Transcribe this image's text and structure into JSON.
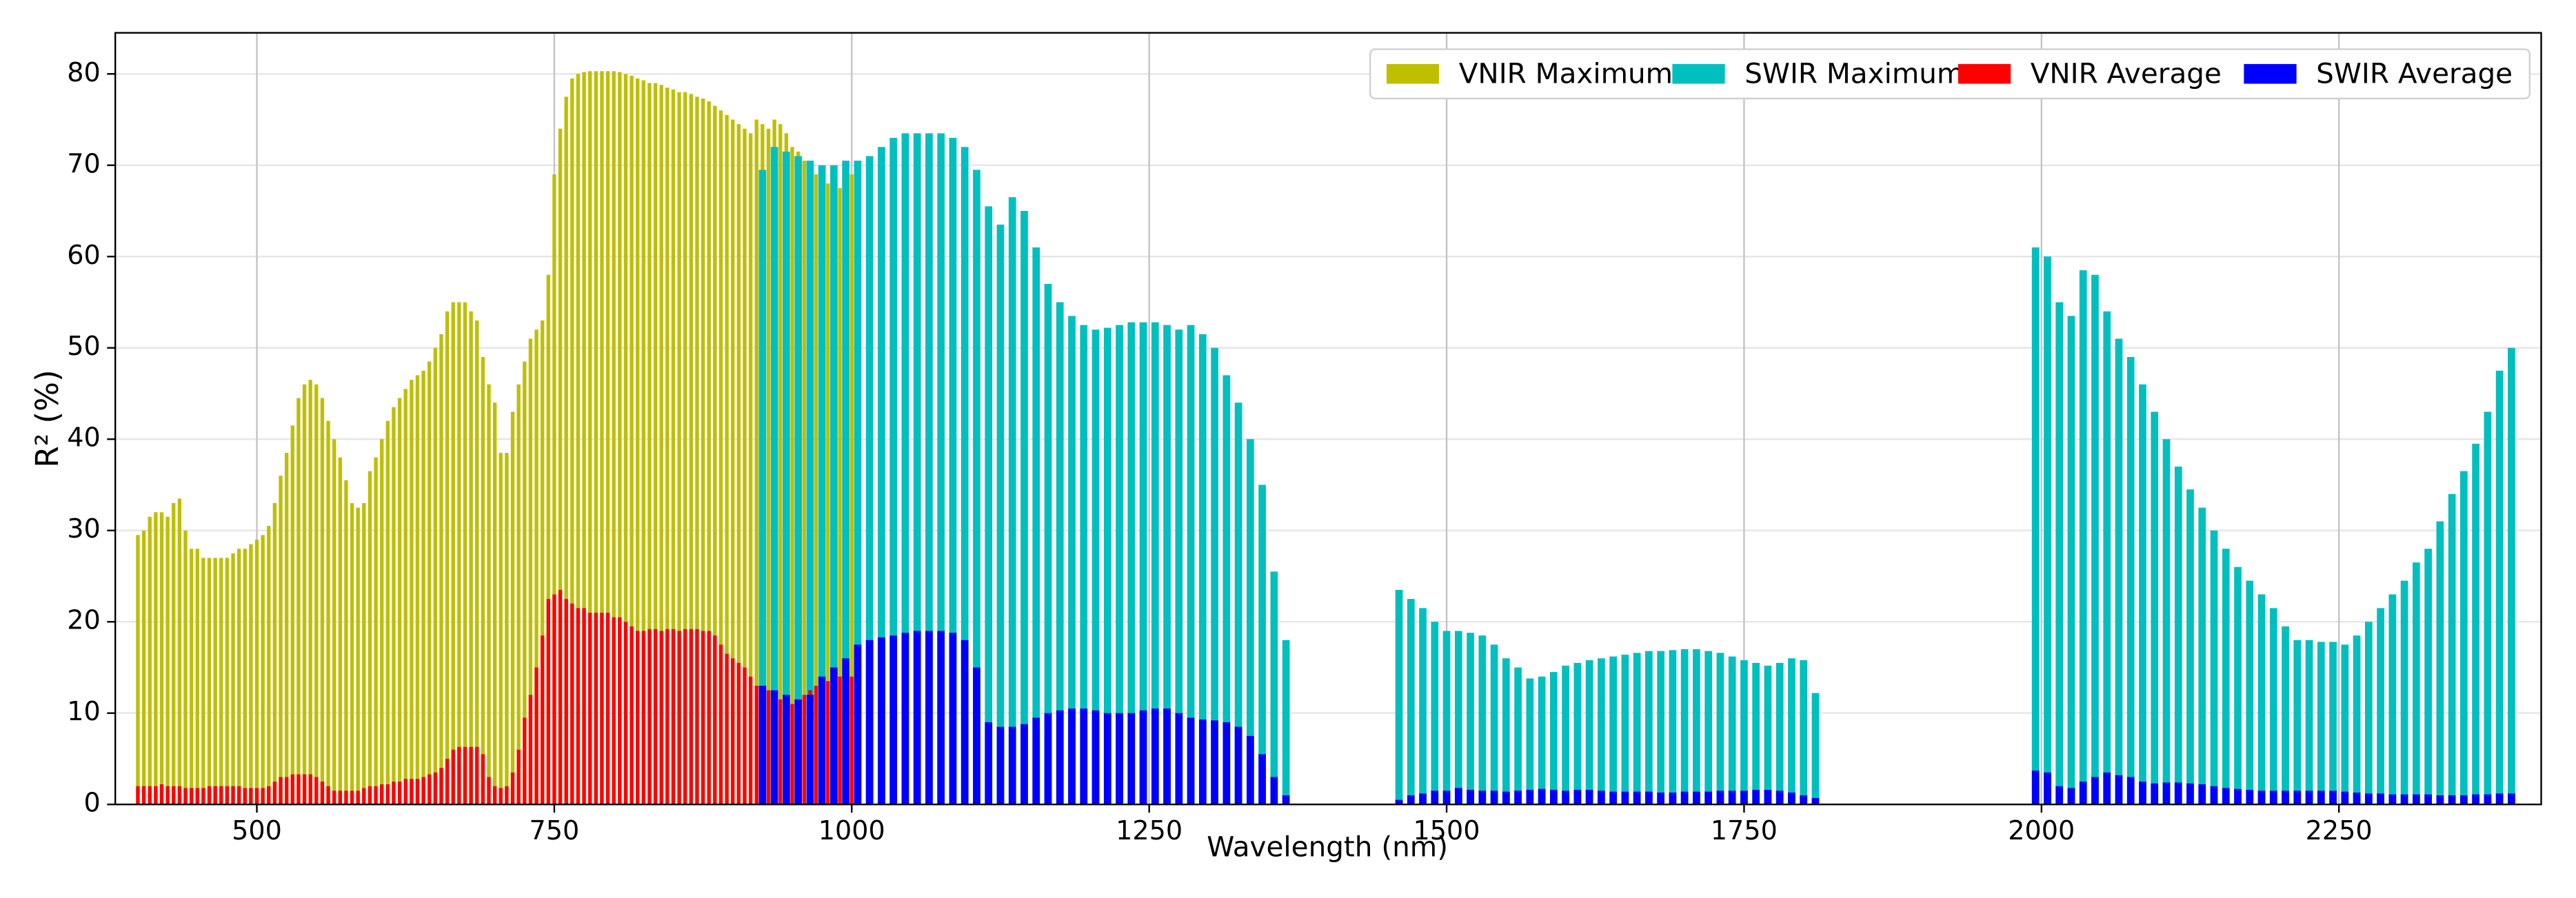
{
  "chart_data": {
    "type": "bar",
    "xlabel": "Wavelength (nm)",
    "ylabel": "R² (%)",
    "xlim": [
      381,
      2420
    ],
    "ylim": [
      0,
      84.5
    ],
    "xticks": [
      500,
      750,
      1000,
      1250,
      1500,
      1750,
      2000,
      2250
    ],
    "yticks": [
      0,
      10,
      20,
      30,
      40,
      50,
      60,
      70,
      80
    ],
    "grid": true,
    "legend": "upper right",
    "series": [
      {
        "name": "VNIR Maximum",
        "color": "#bfbf00",
        "x": [
          400,
          405,
          410,
          415,
          420,
          425,
          430,
          435,
          440,
          445,
          450,
          455,
          460,
          465,
          470,
          475,
          480,
          485,
          490,
          495,
          500,
          505,
          510,
          515,
          520,
          525,
          530,
          535,
          540,
          545,
          550,
          555,
          560,
          565,
          570,
          575,
          580,
          585,
          590,
          595,
          600,
          605,
          610,
          615,
          620,
          625,
          630,
          635,
          640,
          645,
          650,
          655,
          660,
          665,
          670,
          675,
          680,
          685,
          690,
          695,
          700,
          705,
          710,
          715,
          720,
          725,
          730,
          735,
          740,
          745,
          750,
          755,
          760,
          765,
          770,
          775,
          780,
          785,
          790,
          795,
          800,
          805,
          810,
          815,
          820,
          825,
          830,
          835,
          840,
          845,
          850,
          855,
          860,
          865,
          870,
          875,
          880,
          885,
          890,
          895,
          900,
          905,
          910,
          915,
          920,
          925,
          930,
          935,
          940,
          945,
          950,
          955,
          960,
          965,
          970,
          975,
          980,
          985,
          990,
          995,
          1000
        ],
        "values": [
          29.5,
          30,
          31.5,
          32,
          32,
          31.5,
          33,
          33.5,
          30,
          28,
          28,
          27,
          27,
          27,
          27,
          27,
          27.5,
          28,
          28,
          28.5,
          29,
          29.5,
          30.5,
          33,
          36,
          38.5,
          41.5,
          44.5,
          46,
          46.5,
          46,
          44.5,
          42,
          40,
          38,
          35.5,
          33,
          32.5,
          33,
          36.5,
          38,
          40,
          42,
          43.5,
          44.5,
          45.5,
          46.5,
          47,
          47.5,
          48.5,
          50,
          51.5,
          54,
          55,
          55,
          55,
          54,
          53,
          49,
          46,
          44,
          38.5,
          38.5,
          43,
          46,
          48.5,
          51,
          52,
          53,
          58,
          69,
          74,
          77.5,
          79.5,
          80,
          80.2,
          80.3,
          80.3,
          80.3,
          80.3,
          80.3,
          80.2,
          80,
          79.8,
          79.5,
          79.3,
          79,
          79,
          78.8,
          78.5,
          78.3,
          78,
          78,
          77.8,
          77.5,
          77.3,
          77,
          76.5,
          76,
          75.5,
          75,
          74.5,
          74,
          73.5,
          75,
          74.5,
          74,
          75,
          74.5,
          73.5,
          72,
          71.5,
          70.5,
          70,
          69,
          68.5,
          68,
          68,
          67.5,
          67,
          69
        ]
      },
      {
        "name": "SWIR Maximum",
        "color": "#00bfbf",
        "x": [
          925,
          935,
          945,
          955,
          965,
          975,
          985,
          995,
          1005,
          1015,
          1025,
          1035,
          1045,
          1055,
          1065,
          1075,
          1085,
          1095,
          1105,
          1115,
          1125,
          1135,
          1145,
          1155,
          1165,
          1175,
          1185,
          1195,
          1205,
          1215,
          1225,
          1235,
          1245,
          1255,
          1265,
          1275,
          1285,
          1295,
          1305,
          1315,
          1325,
          1335,
          1345,
          1355,
          1365,
          1460,
          1470,
          1480,
          1490,
          1500,
          1510,
          1520,
          1530,
          1540,
          1550,
          1560,
          1570,
          1580,
          1590,
          1600,
          1610,
          1620,
          1630,
          1640,
          1650,
          1660,
          1670,
          1680,
          1690,
          1700,
          1710,
          1720,
          1730,
          1740,
          1750,
          1760,
          1770,
          1780,
          1790,
          1800,
          1810,
          1995,
          2005,
          2015,
          2025,
          2035,
          2045,
          2055,
          2065,
          2075,
          2085,
          2095,
          2105,
          2115,
          2125,
          2135,
          2145,
          2155,
          2165,
          2175,
          2185,
          2195,
          2205,
          2215,
          2225,
          2235,
          2245,
          2255,
          2265,
          2275,
          2285,
          2295,
          2305,
          2315,
          2325,
          2335,
          2345,
          2355,
          2365,
          2375,
          2385,
          2395
        ],
        "values": [
          69.5,
          72,
          71.5,
          71,
          70.5,
          70,
          70,
          70.5,
          70.5,
          71,
          72,
          73,
          73.5,
          73.5,
          73.5,
          73.5,
          73,
          72,
          69.5,
          65.5,
          63.5,
          66.5,
          65,
          61,
          57,
          55,
          53.5,
          52.5,
          52,
          52.2,
          52.5,
          52.8,
          52.8,
          52.8,
          52.5,
          52,
          52.5,
          51.5,
          50,
          47,
          44,
          40,
          35,
          25.5,
          18,
          23.5,
          22.5,
          21.5,
          20,
          19,
          19,
          18.8,
          18.5,
          17.5,
          16,
          15,
          13.8,
          14,
          14.5,
          15.2,
          15.5,
          15.8,
          16,
          16.2,
          16.4,
          16.6,
          16.8,
          16.8,
          16.9,
          17,
          17,
          16.8,
          16.6,
          16.2,
          15.8,
          15.5,
          15.2,
          15.5,
          16,
          15.8,
          12.2,
          61,
          60,
          55,
          53.5,
          58.5,
          58,
          54,
          51,
          49,
          46,
          43,
          40,
          37,
          34.5,
          32.5,
          30,
          28,
          26,
          24.5,
          23,
          21.5,
          19.5,
          18,
          18,
          17.8,
          17.8,
          17.5,
          18.5,
          20,
          21.5,
          23,
          24.5,
          26.5,
          28,
          31,
          34,
          36.5,
          39.5,
          43,
          47.5,
          50
        ]
      },
      {
        "name": "VNIR Average",
        "color": "#ff0000",
        "x": [
          400,
          405,
          410,
          415,
          420,
          425,
          430,
          435,
          440,
          445,
          450,
          455,
          460,
          465,
          470,
          475,
          480,
          485,
          490,
          495,
          500,
          505,
          510,
          515,
          520,
          525,
          530,
          535,
          540,
          545,
          550,
          555,
          560,
          565,
          570,
          575,
          580,
          585,
          590,
          595,
          600,
          605,
          610,
          615,
          620,
          625,
          630,
          635,
          640,
          645,
          650,
          655,
          660,
          665,
          670,
          675,
          680,
          685,
          690,
          695,
          700,
          705,
          710,
          715,
          720,
          725,
          730,
          735,
          740,
          745,
          750,
          755,
          760,
          765,
          770,
          775,
          780,
          785,
          790,
          795,
          800,
          805,
          810,
          815,
          820,
          825,
          830,
          835,
          840,
          845,
          850,
          855,
          860,
          865,
          870,
          875,
          880,
          885,
          890,
          895,
          900,
          905,
          910,
          915,
          920,
          925,
          930,
          935,
          940,
          945,
          950,
          955,
          960,
          965,
          970,
          975,
          980,
          985,
          990,
          995,
          1000
        ],
        "values": [
          2,
          2,
          2,
          2,
          2.2,
          2,
          2,
          2,
          1.8,
          1.8,
          1.8,
          1.8,
          2,
          2,
          2,
          2,
          2,
          2,
          1.8,
          1.8,
          1.8,
          1.8,
          2,
          2.5,
          3,
          3,
          3.3,
          3.3,
          3.3,
          3.3,
          3,
          2.5,
          2,
          1.5,
          1.5,
          1.5,
          1.5,
          1.5,
          1.8,
          2,
          2,
          2.2,
          2.2,
          2.5,
          2.5,
          2.8,
          2.8,
          2.8,
          3,
          3.3,
          3.5,
          4,
          5,
          6,
          6.3,
          6.3,
          6.3,
          6.3,
          5.5,
          3,
          2,
          1.8,
          2,
          3.5,
          6,
          9.5,
          12,
          15,
          18.5,
          22.5,
          23,
          23.5,
          22.5,
          22,
          21.5,
          21.5,
          21,
          21,
          21,
          21,
          20.5,
          20.5,
          20,
          19.5,
          19,
          19,
          19.2,
          19.2,
          19,
          19.2,
          19.2,
          19,
          19.2,
          19.2,
          19.2,
          19,
          19,
          18.5,
          17.5,
          16.5,
          16,
          15.5,
          15,
          14,
          13,
          13,
          12.5,
          12,
          11.5,
          11,
          11,
          11.5,
          12,
          12.5,
          13,
          13.5,
          13.5,
          13.5,
          14,
          14,
          14
        ]
      },
      {
        "name": "SWIR Average",
        "color": "#0000ff",
        "x": [
          925,
          935,
          945,
          955,
          965,
          975,
          985,
          995,
          1005,
          1015,
          1025,
          1035,
          1045,
          1055,
          1065,
          1075,
          1085,
          1095,
          1105,
          1115,
          1125,
          1135,
          1145,
          1155,
          1165,
          1175,
          1185,
          1195,
          1205,
          1215,
          1225,
          1235,
          1245,
          1255,
          1265,
          1275,
          1285,
          1295,
          1305,
          1315,
          1325,
          1335,
          1345,
          1355,
          1365,
          1460,
          1470,
          1480,
          1490,
          1500,
          1510,
          1520,
          1530,
          1540,
          1550,
          1560,
          1570,
          1580,
          1590,
          1600,
          1610,
          1620,
          1630,
          1640,
          1650,
          1660,
          1670,
          1680,
          1690,
          1700,
          1710,
          1720,
          1730,
          1740,
          1750,
          1760,
          1770,
          1780,
          1790,
          1800,
          1810,
          1995,
          2005,
          2015,
          2025,
          2035,
          2045,
          2055,
          2065,
          2075,
          2085,
          2095,
          2105,
          2115,
          2125,
          2135,
          2145,
          2155,
          2165,
          2175,
          2185,
          2195,
          2205,
          2215,
          2225,
          2235,
          2245,
          2255,
          2265,
          2275,
          2285,
          2295,
          2305,
          2315,
          2325,
          2335,
          2345,
          2355,
          2365,
          2375,
          2385,
          2395
        ],
        "values": [
          13,
          12.5,
          12,
          11.5,
          12,
          14,
          15,
          16,
          17.5,
          18,
          18.3,
          18.5,
          18.8,
          19,
          19,
          19,
          18.8,
          18,
          15,
          9,
          8.5,
          8.5,
          8.8,
          9.5,
          10,
          10.3,
          10.5,
          10.5,
          10.3,
          10,
          10,
          10,
          10.3,
          10.5,
          10.5,
          10,
          9.5,
          9.3,
          9.2,
          9,
          8.5,
          7.5,
          5.5,
          3,
          1,
          0.5,
          1,
          1.2,
          1.5,
          1.5,
          1.8,
          1.6,
          1.5,
          1.5,
          1.4,
          1.5,
          1.6,
          1.7,
          1.6,
          1.5,
          1.6,
          1.6,
          1.5,
          1.4,
          1.4,
          1.4,
          1.4,
          1.3,
          1.3,
          1.4,
          1.4,
          1.4,
          1.5,
          1.5,
          1.5,
          1.6,
          1.6,
          1.5,
          1.3,
          1,
          0.7,
          3.7,
          3.5,
          2,
          1.8,
          2.5,
          3,
          3.5,
          3.2,
          3,
          2.5,
          2.3,
          2.4,
          2.4,
          2.3,
          2.2,
          2,
          1.8,
          1.7,
          1.6,
          1.5,
          1.5,
          1.5,
          1.5,
          1.5,
          1.5,
          1.5,
          1.4,
          1.3,
          1.2,
          1.2,
          1.1,
          1.1,
          1.1,
          1.1,
          1,
          1,
          1,
          1.1,
          1.1,
          1.2,
          1.2
        ]
      }
    ]
  }
}
